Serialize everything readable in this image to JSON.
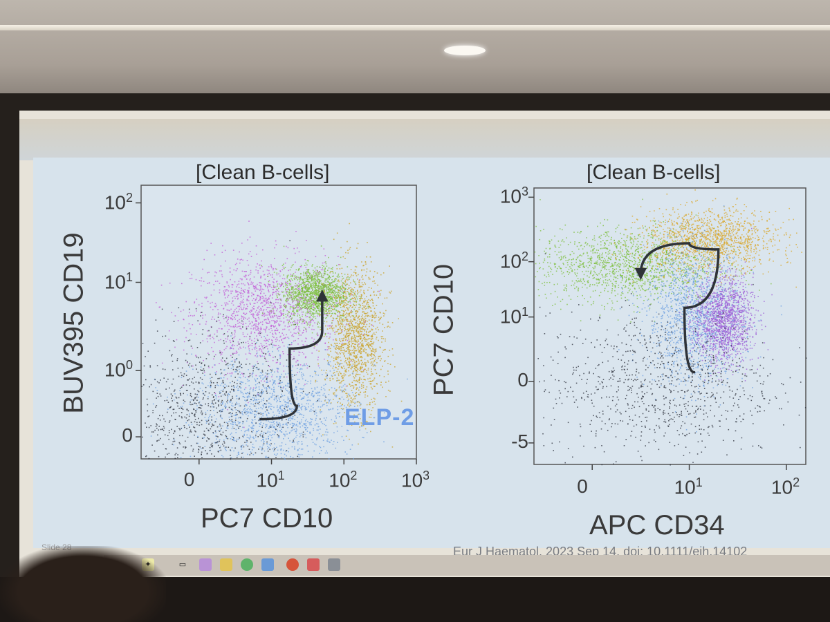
{
  "slide": {
    "citation": "Eur J Haematol. 2023 Sep 14. doi: 10.1111/ejh.14102",
    "slide_number": "Slide 28"
  },
  "chart_data": [
    {
      "type": "scatter",
      "title": "[Clean B-cells]",
      "xlabel": "PC7 CD10",
      "ylabel": "BUV395 CD19",
      "x_scale": "biexponential",
      "y_scale": "biexponential",
      "x_ticks": [
        {
          "base": "0",
          "exp": ""
        },
        {
          "base": "10",
          "exp": "1"
        },
        {
          "base": "10",
          "exp": "2"
        },
        {
          "base": "10",
          "exp": "3"
        }
      ],
      "y_ticks": [
        {
          "base": "0",
          "exp": ""
        },
        {
          "base": "10",
          "exp": "0"
        },
        {
          "base": "10",
          "exp": "1"
        },
        {
          "base": "10",
          "exp": "2"
        }
      ],
      "xlim": [
        -0.8,
        3
      ],
      "ylim": [
        -0.7,
        2.4
      ],
      "annotation": "ELP-2",
      "annotation_color": "#6f9de6",
      "populations": [
        {
          "color": "#c25bd6",
          "center": [
            0.9,
            0.95
          ],
          "spread": [
            0.5,
            0.32
          ]
        },
        {
          "color": "#7cbd3a",
          "center": [
            1.6,
            1.18
          ],
          "spread": [
            0.22,
            0.15
          ]
        },
        {
          "color": "#c9a026",
          "center": [
            2.15,
            0.65
          ],
          "spread": [
            0.2,
            0.4
          ]
        },
        {
          "color": "#6d9fe0",
          "center": [
            1.05,
            -0.15
          ],
          "spread": [
            0.55,
            0.3
          ]
        },
        {
          "color": "#2c2f3b",
          "center": [
            0.1,
            -0.15
          ],
          "spread": [
            0.6,
            0.45
          ]
        }
      ],
      "trajectory": [
        [
          0.85,
          -0.25
        ],
        [
          1.35,
          -0.1
        ],
        [
          1.25,
          0.55
        ],
        [
          1.7,
          0.75
        ],
        [
          1.7,
          1.15
        ]
      ]
    },
    {
      "type": "scatter",
      "title": "[Clean B-cells]",
      "xlabel": "APC CD34",
      "ylabel": "PC7 CD10",
      "x_scale": "biexponential",
      "y_scale": "biexponential",
      "x_ticks": [
        {
          "base": "0",
          "exp": ""
        },
        {
          "base": "10",
          "exp": "1"
        },
        {
          "base": "10",
          "exp": "2"
        }
      ],
      "y_ticks": [
        {
          "base": "-5",
          "exp": ""
        },
        {
          "base": "0",
          "exp": ""
        },
        {
          "base": "10",
          "exp": "1"
        },
        {
          "base": "10",
          "exp": "2"
        },
        {
          "base": "10",
          "exp": "3"
        }
      ],
      "xlim": [
        -0.6,
        2.2
      ],
      "ylim": [
        -1.4,
        3.1
      ],
      "populations": [
        {
          "color": "#7cbd3a",
          "center": [
            0.35,
            1.85
          ],
          "spread": [
            0.45,
            0.3
          ]
        },
        {
          "color": "#d8a52a",
          "center": [
            1.2,
            2.25
          ],
          "spread": [
            0.35,
            0.25
          ]
        },
        {
          "color": "#6d9fe0",
          "center": [
            1.05,
            1.0
          ],
          "spread": [
            0.25,
            0.55
          ]
        },
        {
          "color": "#9c5bd6",
          "center": [
            1.35,
            0.95
          ],
          "spread": [
            0.15,
            0.35
          ]
        },
        {
          "color": "#2c2f3b",
          "center": [
            0.7,
            -0.1
          ],
          "spread": [
            0.6,
            0.6
          ]
        }
      ],
      "trajectory": [
        [
          1.05,
          0.1
        ],
        [
          0.95,
          1.15
        ],
        [
          1.3,
          2.1
        ],
        [
          1.0,
          2.2
        ],
        [
          0.5,
          1.7
        ]
      ]
    }
  ]
}
